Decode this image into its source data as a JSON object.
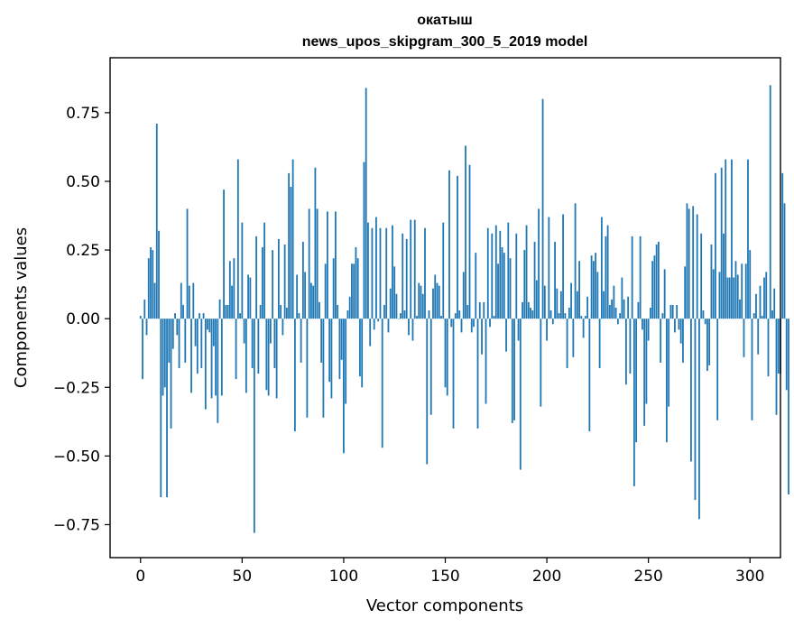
{
  "chart_data": {
    "type": "bar",
    "title": "окатыш",
    "subtitle": "news_upos_skipgram_300_5_2019 model",
    "xlabel": "Vector components",
    "ylabel": "Components values",
    "xlim": [
      -15,
      315
    ],
    "ylim": [
      -0.87,
      0.95
    ],
    "xticks": [
      0,
      50,
      100,
      150,
      200,
      250,
      300
    ],
    "yticks": [
      -0.75,
      -0.5,
      -0.25,
      0.0,
      0.25,
      0.5,
      0.75
    ],
    "xtick_labels": [
      "0",
      "50",
      "100",
      "150",
      "200",
      "250",
      "300"
    ],
    "ytick_labels": [
      "−0.75",
      "−0.50",
      "−0.25",
      "0.00",
      "0.25",
      "0.50",
      "0.75"
    ],
    "bar_color": "#1f77b4",
    "grid": false,
    "values": [
      0.01,
      -0.22,
      0.07,
      -0.06,
      0.22,
      0.26,
      0.25,
      0.13,
      0.71,
      0.32,
      -0.65,
      -0.28,
      -0.25,
      -0.65,
      -0.16,
      -0.4,
      -0.11,
      0.02,
      -0.06,
      -0.18,
      0.13,
      0.05,
      -0.16,
      0.4,
      0.12,
      -0.27,
      0.13,
      -0.1,
      -0.2,
      0.02,
      -0.18,
      0.02,
      -0.33,
      -0.04,
      -0.05,
      -0.29,
      -0.1,
      -0.28,
      -0.38,
      0.07,
      -0.28,
      0.47,
      0.05,
      0.05,
      0.21,
      0.12,
      0.22,
      -0.22,
      0.58,
      0.02,
      0.35,
      -0.09,
      -0.27,
      0.16,
      0.15,
      -0.18,
      -0.78,
      0.3,
      -0.2,
      0.05,
      0.26,
      0.35,
      -0.26,
      -0.28,
      -0.09,
      0.25,
      -0.18,
      -0.29,
      0.29,
      0.05,
      -0.06,
      0.27,
      0.04,
      0.53,
      0.48,
      0.58,
      -0.41,
      0.16,
      0.02,
      -0.16,
      0.28,
      0.17,
      -0.36,
      0.4,
      0.13,
      0.12,
      0.55,
      0.4,
      0.06,
      -0.16,
      -0.36,
      0.2,
      0.39,
      -0.23,
      -0.29,
      0.22,
      0.39,
      0.05,
      -0.22,
      -0.15,
      -0.49,
      -0.31,
      0.03,
      0.08,
      0.2,
      0.2,
      0.26,
      0.22,
      -0.21,
      -0.25,
      0.57,
      0.84,
      0.35,
      -0.1,
      0.33,
      -0.04,
      0.37,
      -0.01,
      0.33,
      -0.47,
      0.05,
      0.33,
      -0.05,
      0.11,
      0.34,
      0.19,
      0.09,
      0.0,
      0.02,
      0.31,
      0.03,
      0.29,
      -0.06,
      0.36,
      -0.08,
      0.36,
      0.01,
      0.13,
      0.12,
      0.09,
      0.33,
      -0.53,
      0.03,
      -0.35,
      0.11,
      0.16,
      0.13,
      0.12,
      0.01,
      0.35,
      -0.25,
      -0.28,
      0.54,
      -0.03,
      -0.4,
      0.02,
      0.52,
      0.03,
      -0.05,
      0.17,
      0.63,
      0.05,
      0.56,
      -0.05,
      -0.03,
      0.24,
      -0.4,
      0.06,
      -0.13,
      0.06,
      -0.31,
      0.33,
      -0.03,
      0.31,
      0.01,
      0.34,
      0.2,
      0.32,
      0.26,
      0.24,
      -0.12,
      0.35,
      0.22,
      -0.38,
      -0.37,
      0.31,
      -0.08,
      -0.55,
      0.06,
      0.25,
      0.34,
      0.06,
      0.04,
      0.03,
      0.28,
      0.14,
      0.4,
      -0.32,
      0.8,
      0.12,
      -0.08,
      0.37,
      0.03,
      -0.02,
      0.28,
      0.11,
      0.02,
      0.1,
      0.38,
      0.02,
      -0.18,
      0.04,
      0.13,
      -0.14,
      0.42,
      0.1,
      0.21,
      0.01,
      -0.07,
      0.01,
      0.08,
      -0.41,
      0.23,
      0.21,
      0.24,
      0.17,
      -0.18,
      0.37,
      0.1,
      0.3,
      0.34,
      0.05,
      0.07,
      0.12,
      0.04,
      -0.02,
      0.02,
      0.15,
      0.07,
      -0.24,
      0.08,
      -0.2,
      0.3,
      -0.61,
      -0.45,
      0.06,
      0.3,
      -0.04,
      -0.39,
      -0.31,
      -0.08,
      0.04,
      0.21,
      0.23,
      0.27,
      0.28,
      -0.16,
      0.02,
      0.18,
      -0.45,
      -0.32,
      0.05,
      0.05,
      -0.05,
      0.05,
      -0.04,
      -0.09,
      -0.16,
      0.19,
      0.42,
      0.4,
      -0.52,
      0.41,
      -0.66,
      0.38,
      -0.73,
      0.31,
      0.03,
      -0.02,
      -0.19,
      -0.17,
      0.27,
      0.18,
      0.53,
      -0.37,
      0.17,
      0.55,
      0.31,
      0.58,
      0.15,
      0.15,
      0.58,
      0.15,
      0.21,
      0.16,
      0.07,
      0.2,
      -0.14,
      0.2,
      0.58,
      0.25,
      -0.37,
      0.02,
      0.09,
      -0.13,
      0.12,
      0.01,
      0.15,
      0.17,
      -0.21,
      0.85,
      0.03,
      0.11,
      -0.35,
      -0.2,
      -0.2,
      0.53,
      0.42,
      -0.26,
      -0.64
    ]
  }
}
